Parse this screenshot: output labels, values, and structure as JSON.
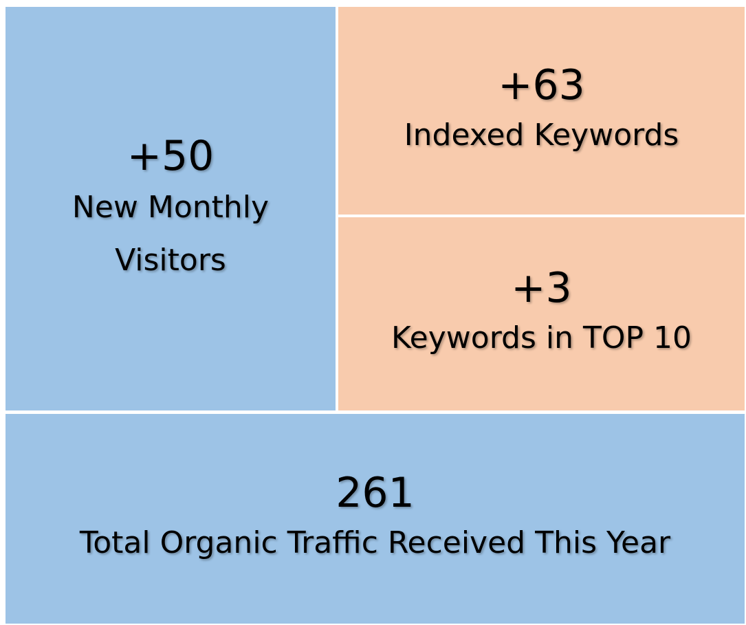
{
  "tiles": [
    {
      "value": "+50",
      "label": "New Monthly Visitors"
    },
    {
      "value": "+63",
      "label": "Indexed Keywords"
    },
    {
      "value": "+3",
      "label": "Keywords in TOP 10"
    },
    {
      "value": "261",
      "label": "Total Organic Traffic Received This Year"
    }
  ]
}
